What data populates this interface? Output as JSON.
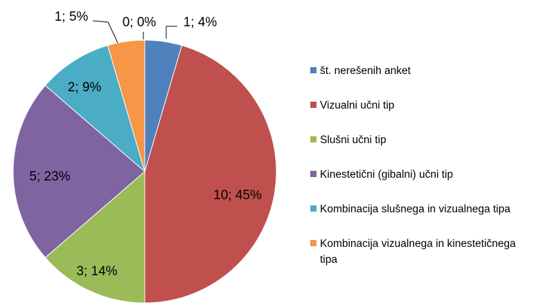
{
  "chart_data": {
    "type": "pie",
    "categories": [
      "št. nerešenih anket",
      "Vizualni učni tip",
      "Slušni učni tip",
      "Kinestetični (gibalni) učni tip",
      "Kombinacija slušnega in vizualnega tipa",
      "Kombinacija vizualnega in kinestetičnega tipa",
      null
    ],
    "values": [
      1,
      10,
      3,
      5,
      2,
      1,
      0
    ],
    "value_labels": [
      "1; 4%",
      "10; 45%",
      "3; 14%",
      "5; 23%",
      "2; 9%",
      "1; 5%",
      "0; 0%"
    ],
    "colors": [
      "#4f81bd",
      "#c0504d",
      "#9bbb59",
      "#8064a2",
      "#4bacc6",
      "#f79646",
      "#2c4d75"
    ],
    "legend": "right"
  }
}
